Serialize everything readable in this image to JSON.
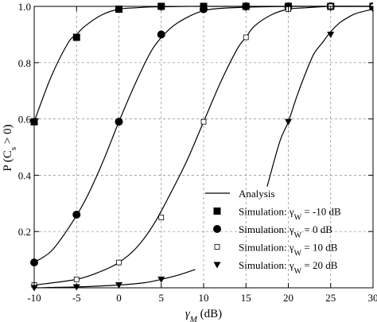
{
  "chart_data": {
    "type": "line",
    "xlabel": "γ_M (dB)",
    "ylabel": "P (C_s > 0)",
    "xlim": [
      -10,
      30
    ],
    "ylim": [
      0,
      1.0
    ],
    "x_ticks": [
      -10,
      -5,
      0,
      5,
      10,
      15,
      20,
      25,
      30
    ],
    "y_ticks": [
      0.2,
      0.4,
      0.6,
      0.8,
      1.0
    ],
    "x_tick_labels": [
      "-10",
      "-5",
      "0",
      "5",
      "10",
      "15",
      "20",
      "25",
      "30"
    ],
    "y_tick_labels": [
      "0.2",
      "0.4",
      "0.6",
      "0.8",
      "1.0"
    ],
    "grid": true,
    "legend_position": "bottom-right",
    "analysis": {
      "name": "Analysis",
      "curves": [
        {
          "gamma_w_db": -10,
          "x": [
            -10,
            -8,
            -6,
            -5,
            -4,
            -2,
            0,
            2,
            4,
            6,
            8,
            10,
            15,
            20,
            25,
            30
          ],
          "y": [
            0.59,
            0.75,
            0.87,
            0.9,
            0.93,
            0.97,
            0.99,
            0.995,
            0.998,
            0.999,
            1,
            1,
            1,
            1,
            1,
            1
          ]
        },
        {
          "gamma_w_db": 0,
          "x": [
            -10,
            -8,
            -6,
            -4,
            -2,
            0,
            2,
            4,
            6,
            8,
            10,
            12,
            15,
            20,
            25,
            30
          ],
          "y": [
            0.09,
            0.13,
            0.21,
            0.31,
            0.44,
            0.59,
            0.73,
            0.85,
            0.92,
            0.96,
            0.985,
            0.993,
            0.997,
            1,
            1,
            1
          ]
        },
        {
          "gamma_w_db": 10,
          "x": [
            -10,
            -5,
            -2,
            0,
            2,
            4,
            6,
            8,
            10,
            12,
            14,
            15,
            16,
            18,
            20,
            22,
            25,
            30
          ],
          "y": [
            0.01,
            0.03,
            0.06,
            0.09,
            0.14,
            0.22,
            0.33,
            0.45,
            0.59,
            0.73,
            0.85,
            0.89,
            0.93,
            0.97,
            0.99,
            0.995,
            1,
            1
          ]
        },
        {
          "gamma_w_db": 20,
          "x": [
            -10,
            -5,
            0,
            3,
            5,
            7,
            9
          ],
          "y": [
            0.0,
            0.003,
            0.01,
            0.018,
            0.03,
            0.045,
            0.065
          ]
        },
        {
          "gamma_w_db": 20,
          "x": [
            17.5,
            19,
            20,
            21,
            22,
            23,
            24,
            25,
            26,
            27,
            28,
            30
          ],
          "y": [
            0.36,
            0.52,
            0.59,
            0.68,
            0.76,
            0.83,
            0.87,
            0.91,
            0.94,
            0.96,
            0.975,
            0.99
          ]
        }
      ]
    },
    "series": [
      {
        "name": "Simulation: γ_W = -10 dB",
        "marker": "square-filled",
        "x": [
          -10,
          -5,
          0,
          5,
          10,
          15,
          20,
          25,
          30
        ],
        "y": [
          0.59,
          0.89,
          0.99,
          1,
          1,
          1,
          1,
          1,
          1
        ]
      },
      {
        "name": "Simulation: γ_W = 0 dB",
        "marker": "circle-filled",
        "x": [
          -10,
          -5,
          0,
          5,
          10,
          15,
          20,
          25,
          30
        ],
        "y": [
          0.09,
          0.26,
          0.59,
          0.9,
          0.99,
          1,
          1,
          1,
          1
        ]
      },
      {
        "name": "Simulation: γ_W = 10 dB",
        "marker": "square-open",
        "x": [
          -10,
          -5,
          0,
          5,
          10,
          15,
          20,
          25,
          30
        ],
        "y": [
          0.01,
          0.03,
          0.09,
          0.25,
          0.59,
          0.89,
          0.99,
          1,
          1
        ]
      },
      {
        "name": "Simulation: γ_W = 20 dB",
        "marker": "triangle-down-filled",
        "x": [
          -10,
          -5,
          0,
          5,
          20,
          25,
          30
        ],
        "y": [
          0.0,
          0.003,
          0.01,
          0.03,
          0.59,
          0.9,
          0.99
        ]
      }
    ],
    "legend": {
      "analysis_label": "Analysis",
      "entries": [
        {
          "prefix": "Simulation: ",
          "sym": "γ",
          "sub": "W",
          "value": " = -10 dB",
          "marker": "square-filled"
        },
        {
          "prefix": "Simulation: ",
          "sym": "γ",
          "sub": "W",
          "value": " = 0 dB",
          "marker": "circle-filled"
        },
        {
          "prefix": "Simulation: ",
          "sym": "γ",
          "sub": "W",
          "value": " = 10 dB",
          "marker": "square-open"
        },
        {
          "prefix": "Simulation: ",
          "sym": "γ",
          "sub": "W",
          "value": " = 20 dB",
          "marker": "triangle-down-filled"
        }
      ]
    },
    "axis_text": {
      "x_sym": "γ",
      "x_sub": "M",
      "x_unit": " (dB)",
      "y_pre": "P (C",
      "y_sub": "s",
      "y_post": " > 0)"
    }
  }
}
